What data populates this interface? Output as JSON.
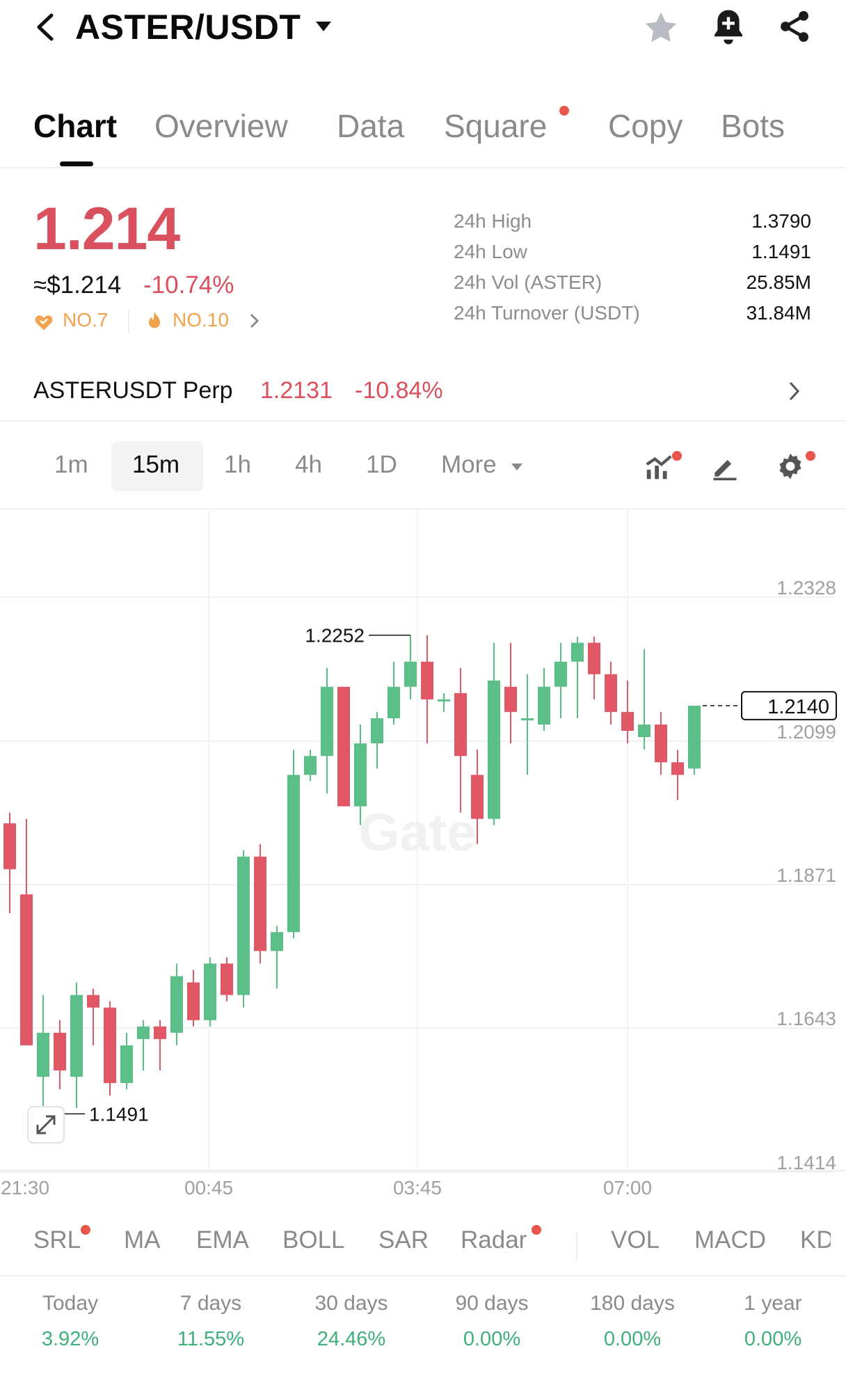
{
  "header": {
    "pair": "ASTER/USDT",
    "icons": [
      "back-icon",
      "caret-down-icon",
      "star-icon",
      "bell-plus-icon",
      "share-icon"
    ]
  },
  "tabs": [
    {
      "label": "Chart",
      "active": true
    },
    {
      "label": "Overview"
    },
    {
      "label": "Data"
    },
    {
      "label": "Square",
      "badge": true
    },
    {
      "label": "Copy"
    },
    {
      "label": "Bots"
    }
  ],
  "ticker": {
    "price": "1.214",
    "usd_price": "≈$1.214",
    "change": "-10.74%",
    "rank_1": "NO.7",
    "rank_2": "NO.10",
    "stats": [
      {
        "label": "24h High",
        "value": "1.3790"
      },
      {
        "label": "24h Low",
        "value": "1.1491"
      },
      {
        "label": "24h Vol (ASTER)",
        "value": "25.85M"
      },
      {
        "label": "24h Turnover (USDT)",
        "value": "31.84M"
      }
    ]
  },
  "perp": {
    "name": "ASTERUSDT Perp",
    "price": "1.2131",
    "change": "-10.84%"
  },
  "intervals": {
    "items": [
      "1m",
      "15m",
      "1h",
      "4h",
      "1D"
    ],
    "active": "15m",
    "more_label": "More"
  },
  "chart_data": {
    "type": "candlestick",
    "y_axis_labels": [
      "1.2328",
      "1.2099",
      "1.1871",
      "1.1643",
      "1.1414"
    ],
    "x_axis_labels": [
      "21:30",
      "00:45",
      "03:45",
      "07:00"
    ],
    "ylim": [
      1.1414,
      1.2328
    ],
    "current_price": "1.2140",
    "high_marker": "1.2252",
    "low_marker": "1.1491",
    "watermark": "Gate",
    "up_color": "#5cbf88",
    "down_color": "#e25766",
    "candles": [
      {
        "o": 1.1953,
        "h": 1.197,
        "l": 1.181,
        "c": 1.188
      },
      {
        "o": 1.184,
        "h": 1.196,
        "l": 1.16,
        "c": 1.16
      },
      {
        "o": 1.155,
        "h": 1.168,
        "l": 1.1491,
        "c": 1.162
      },
      {
        "o": 1.162,
        "h": 1.164,
        "l": 1.153,
        "c": 1.156
      },
      {
        "o": 1.155,
        "h": 1.17,
        "l": 1.15,
        "c": 1.168
      },
      {
        "o": 1.168,
        "h": 1.169,
        "l": 1.16,
        "c": 1.166
      },
      {
        "o": 1.166,
        "h": 1.167,
        "l": 1.152,
        "c": 1.154
      },
      {
        "o": 1.154,
        "h": 1.162,
        "l": 1.153,
        "c": 1.16
      },
      {
        "o": 1.161,
        "h": 1.164,
        "l": 1.156,
        "c": 1.163
      },
      {
        "o": 1.163,
        "h": 1.164,
        "l": 1.156,
        "c": 1.161
      },
      {
        "o": 1.162,
        "h": 1.173,
        "l": 1.16,
        "c": 1.171
      },
      {
        "o": 1.17,
        "h": 1.172,
        "l": 1.163,
        "c": 1.164
      },
      {
        "o": 1.164,
        "h": 1.174,
        "l": 1.163,
        "c": 1.173
      },
      {
        "o": 1.173,
        "h": 1.174,
        "l": 1.167,
        "c": 1.168
      },
      {
        "o": 1.168,
        "h": 1.191,
        "l": 1.166,
        "c": 1.19
      },
      {
        "o": 1.19,
        "h": 1.192,
        "l": 1.173,
        "c": 1.175
      },
      {
        "o": 1.175,
        "h": 1.179,
        "l": 1.169,
        "c": 1.178
      },
      {
        "o": 1.178,
        "h": 1.207,
        "l": 1.177,
        "c": 1.203
      },
      {
        "o": 1.203,
        "h": 1.207,
        "l": 1.202,
        "c": 1.206
      },
      {
        "o": 1.206,
        "h": 1.22,
        "l": 1.2,
        "c": 1.217
      },
      {
        "o": 1.217,
        "h": 1.217,
        "l": 1.198,
        "c": 1.198
      },
      {
        "o": 1.198,
        "h": 1.211,
        "l": 1.195,
        "c": 1.208
      },
      {
        "o": 1.208,
        "h": 1.213,
        "l": 1.204,
        "c": 1.212
      },
      {
        "o": 1.212,
        "h": 1.221,
        "l": 1.211,
        "c": 1.217
      },
      {
        "o": 1.217,
        "h": 1.2252,
        "l": 1.215,
        "c": 1.221
      },
      {
        "o": 1.221,
        "h": 1.2252,
        "l": 1.208,
        "c": 1.215
      },
      {
        "o": 1.215,
        "h": 1.216,
        "l": 1.213,
        "c": 1.215
      },
      {
        "o": 1.216,
        "h": 1.22,
        "l": 1.197,
        "c": 1.206
      },
      {
        "o": 1.203,
        "h": 1.207,
        "l": 1.192,
        "c": 1.196
      },
      {
        "o": 1.196,
        "h": 1.224,
        "l": 1.195,
        "c": 1.218
      },
      {
        "o": 1.217,
        "h": 1.224,
        "l": 1.208,
        "c": 1.213
      },
      {
        "o": 1.212,
        "h": 1.219,
        "l": 1.203,
        "c": 1.212
      },
      {
        "o": 1.211,
        "h": 1.22,
        "l": 1.21,
        "c": 1.217
      },
      {
        "o": 1.217,
        "h": 1.224,
        "l": 1.212,
        "c": 1.221
      },
      {
        "o": 1.221,
        "h": 1.225,
        "l": 1.212,
        "c": 1.224
      },
      {
        "o": 1.224,
        "h": 1.225,
        "l": 1.215,
        "c": 1.219
      },
      {
        "o": 1.219,
        "h": 1.221,
        "l": 1.211,
        "c": 1.213
      },
      {
        "o": 1.213,
        "h": 1.218,
        "l": 1.208,
        "c": 1.21
      },
      {
        "o": 1.209,
        "h": 1.223,
        "l": 1.207,
        "c": 1.211
      },
      {
        "o": 1.211,
        "h": 1.213,
        "l": 1.203,
        "c": 1.205
      },
      {
        "o": 1.205,
        "h": 1.207,
        "l": 1.199,
        "c": 1.203
      },
      {
        "o": 1.204,
        "h": 1.214,
        "l": 1.203,
        "c": 1.214
      }
    ]
  },
  "indicators": {
    "items": [
      {
        "label": "SRL",
        "badge": true
      },
      {
        "label": "MA"
      },
      {
        "label": "EMA"
      },
      {
        "label": "BOLL"
      },
      {
        "label": "SAR"
      },
      {
        "label": "Radar",
        "badge": true
      },
      {
        "label": "VOL"
      },
      {
        "label": "MACD"
      },
      {
        "label": "KD"
      }
    ]
  },
  "performance": [
    {
      "label": "Today",
      "value": "3.92%"
    },
    {
      "label": "7 days",
      "value": "11.55%"
    },
    {
      "label": "30 days",
      "value": "24.46%"
    },
    {
      "label": "90 days",
      "value": "0.00%"
    },
    {
      "label": "180 days",
      "value": "0.00%"
    },
    {
      "label": "1 year",
      "value": "0.00%"
    }
  ],
  "colors": {
    "red": "#d9505e",
    "green": "#3fb07a",
    "orange": "#f0a24c",
    "badge": "#e8554a"
  }
}
